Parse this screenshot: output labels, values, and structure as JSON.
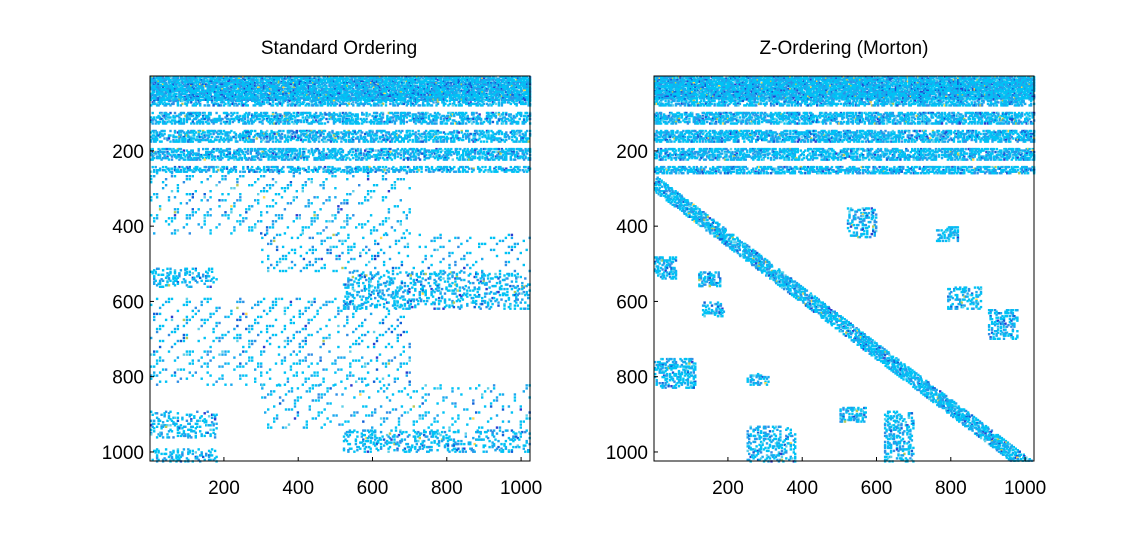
{
  "figure": {
    "background": "#ffffff",
    "palette": [
      "#00c2f5",
      "#1aa8ee",
      "#2f8fe6",
      "#0f5fd8",
      "#2a3bd0",
      "#5fd0e8",
      "#b5c95a",
      "#ffd84a"
    ]
  },
  "chart_data": [
    {
      "type": "heatmap",
      "title": "Standard Ordering",
      "xlabel": "",
      "ylabel": "",
      "xlim": [
        1,
        1024
      ],
      "ylim": [
        1024,
        1
      ],
      "xticks": [
        200,
        400,
        600,
        800,
        1000
      ],
      "yticks": [
        200,
        400,
        600,
        800,
        1000
      ],
      "grid": false,
      "regions": [
        {
          "kind": "dense_band",
          "rows": [
            1,
            64
          ],
          "cols": [
            1,
            1024
          ],
          "density": 0.85
        },
        {
          "kind": "dense_band",
          "rows": [
            64,
            256
          ],
          "cols": [
            1,
            1024
          ],
          "density": 0.45
        },
        {
          "kind": "diagonal_band",
          "rows": [
            256,
            420
          ],
          "cols": [
            1,
            700
          ],
          "density": 0.18
        },
        {
          "kind": "diagonal_band",
          "rows": [
            420,
            520
          ],
          "cols": [
            300,
            1024
          ],
          "density": 0.18
        },
        {
          "kind": "block",
          "rows": [
            510,
            560
          ],
          "cols": [
            1,
            180
          ],
          "density": 0.2
        },
        {
          "kind": "block",
          "rows": [
            520,
            620
          ],
          "cols": [
            520,
            1024
          ],
          "density": 0.2
        },
        {
          "kind": "diagonal_band",
          "rows": [
            590,
            720
          ],
          "cols": [
            1,
            700
          ],
          "density": 0.18
        },
        {
          "kind": "diagonal_band",
          "rows": [
            730,
            820
          ],
          "cols": [
            1,
            700
          ],
          "density": 0.18
        },
        {
          "kind": "diagonal_band",
          "rows": [
            820,
            940
          ],
          "cols": [
            300,
            1024
          ],
          "density": 0.18
        },
        {
          "kind": "block",
          "rows": [
            890,
            960
          ],
          "cols": [
            1,
            180
          ],
          "density": 0.2
        },
        {
          "kind": "block",
          "rows": [
            940,
            1000
          ],
          "cols": [
            520,
            1024
          ],
          "density": 0.2
        },
        {
          "kind": "block",
          "rows": [
            990,
            1024
          ],
          "cols": [
            1,
            180
          ],
          "density": 0.2
        }
      ]
    },
    {
      "type": "heatmap",
      "title": "Z-Ordering (Morton)",
      "xlabel": "",
      "ylabel": "",
      "xlim": [
        1,
        1024
      ],
      "ylim": [
        1024,
        1
      ],
      "xticks": [
        200,
        400,
        600,
        800,
        1000
      ],
      "yticks": [
        200,
        400,
        600,
        800,
        1000
      ],
      "grid": false,
      "regions": [
        {
          "kind": "dense_band",
          "rows": [
            1,
            60
          ],
          "cols": [
            1,
            1024
          ],
          "density": 0.9
        },
        {
          "kind": "dense_band",
          "rows": [
            60,
            260
          ],
          "cols": [
            1,
            1024
          ],
          "density": 0.55
        },
        {
          "kind": "lower_triangle_edge",
          "rows": [
            260,
            1024
          ],
          "cols": [
            1,
            1024
          ],
          "width": 60,
          "density": 0.6
        },
        {
          "kind": "cluster",
          "rows": [
            480,
            540
          ],
          "cols": [
            1,
            60
          ],
          "density": 0.4
        },
        {
          "kind": "cluster",
          "rows": [
            520,
            560
          ],
          "cols": [
            120,
            180
          ],
          "density": 0.35
        },
        {
          "kind": "cluster",
          "rows": [
            600,
            640
          ],
          "cols": [
            130,
            190
          ],
          "density": 0.35
        },
        {
          "kind": "cluster",
          "rows": [
            750,
            830
          ],
          "cols": [
            1,
            110
          ],
          "density": 0.35
        },
        {
          "kind": "cluster",
          "rows": [
            790,
            820
          ],
          "cols": [
            250,
            310
          ],
          "density": 0.3
        },
        {
          "kind": "cluster",
          "rows": [
            930,
            1024
          ],
          "cols": [
            250,
            380
          ],
          "density": 0.3
        },
        {
          "kind": "cluster",
          "rows": [
            880,
            920
          ],
          "cols": [
            500,
            570
          ],
          "density": 0.35
        },
        {
          "kind": "cluster",
          "rows": [
            890,
            1024
          ],
          "cols": [
            620,
            700
          ],
          "density": 0.3
        },
        {
          "kind": "cluster",
          "rows": [
            350,
            430
          ],
          "cols": [
            520,
            600
          ],
          "density": 0.3
        },
        {
          "kind": "cluster",
          "rows": [
            400,
            440
          ],
          "cols": [
            760,
            820
          ],
          "density": 0.35
        },
        {
          "kind": "cluster",
          "rows": [
            560,
            620
          ],
          "cols": [
            790,
            880
          ],
          "density": 0.3
        },
        {
          "kind": "cluster",
          "rows": [
            620,
            700
          ],
          "cols": [
            900,
            980
          ],
          "density": 0.3
        }
      ]
    }
  ]
}
